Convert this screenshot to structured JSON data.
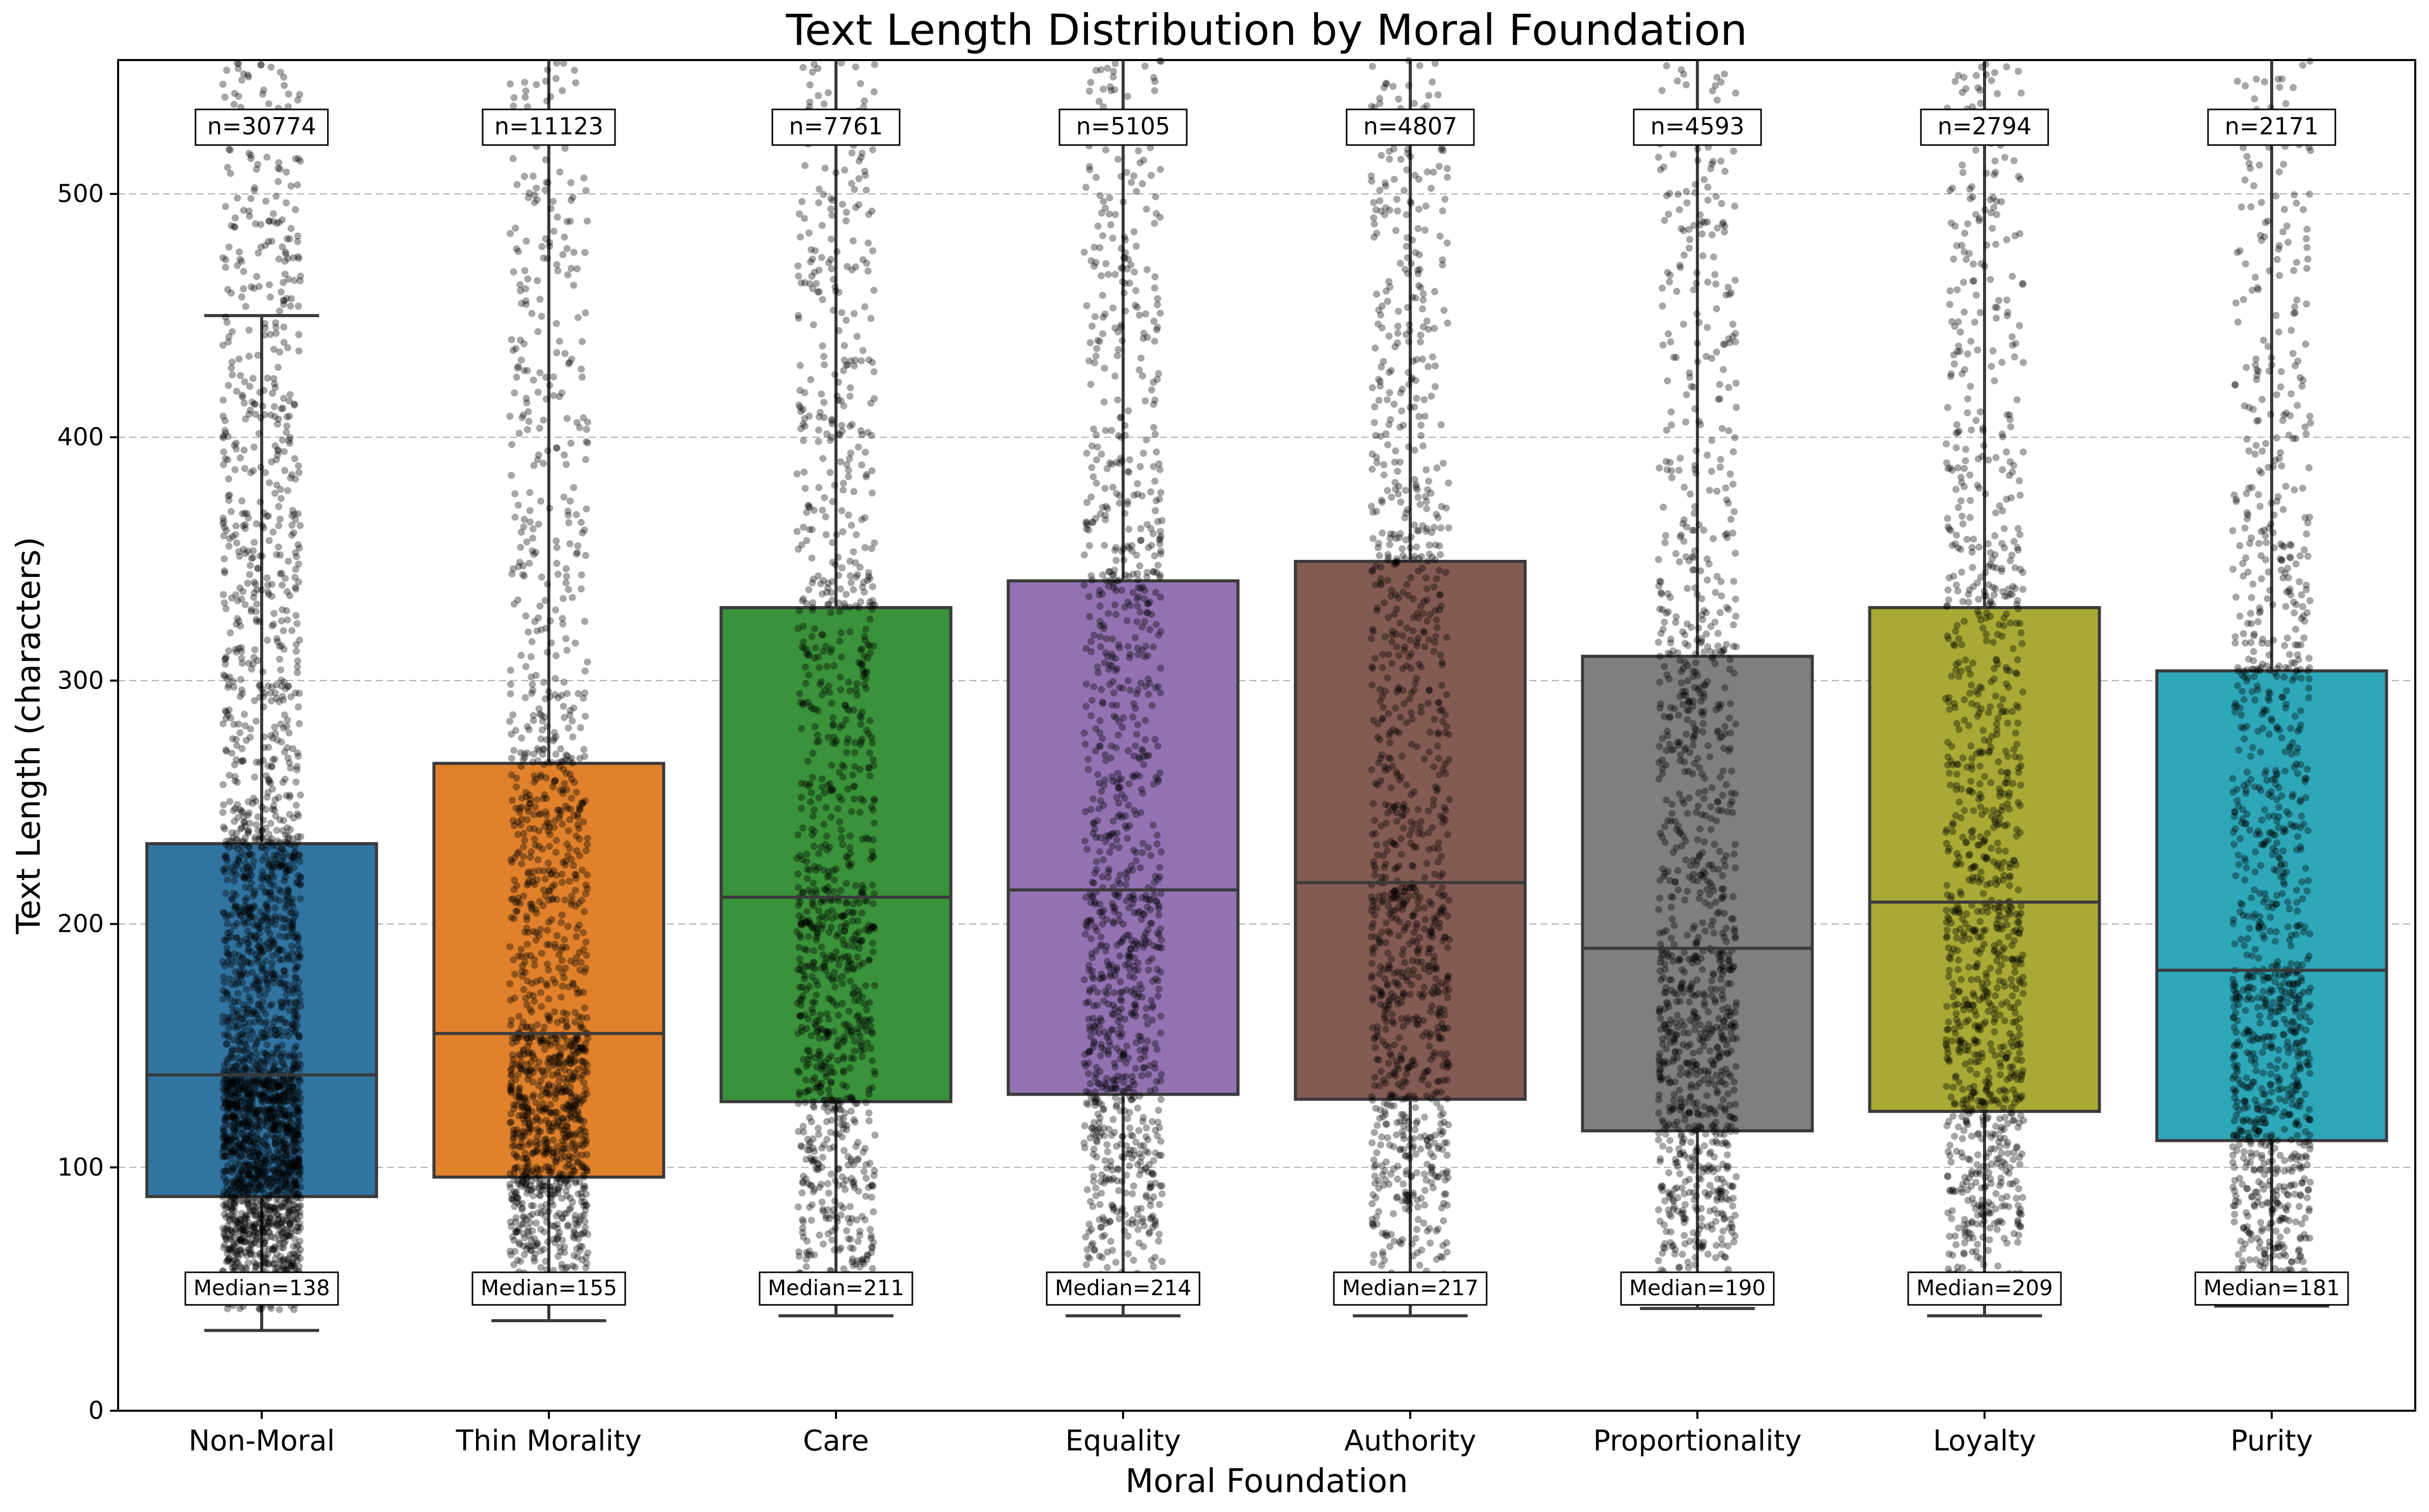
{
  "chart_data": {
    "type": "box",
    "title": "Text Length Distribution by Moral Foundation",
    "xlabel": "Moral Foundation",
    "ylabel": "Text Length (characters)",
    "ylim": [
      0,
      555
    ],
    "yticks": [
      0,
      100,
      200,
      300,
      400,
      500
    ],
    "grid": "horizontal dashed",
    "categories": [
      "Non-Moral",
      "Thin Morality",
      "Care",
      "Equality",
      "Authority",
      "Proportionality",
      "Loyalty",
      "Purity"
    ],
    "colors": [
      "#3274a1",
      "#e1812c",
      "#3a923a",
      "#9372b2",
      "#845b53",
      "#7f7f7f",
      "#a9aa35",
      "#2ea8b9"
    ],
    "boxes": [
      {
        "category": "Non-Moral",
        "q1": 88,
        "median": 138,
        "q3": 233,
        "whisker_low": 33,
        "whisker_high": 450,
        "n": 30774
      },
      {
        "category": "Thin Morality",
        "q1": 96,
        "median": 155,
        "q3": 266,
        "whisker_low": 37,
        "whisker_high": 555,
        "n": 11123
      },
      {
        "category": "Care",
        "q1": 127,
        "median": 211,
        "q3": 330,
        "whisker_low": 39,
        "whisker_high": 555,
        "n": 7761
      },
      {
        "category": "Equality",
        "q1": 130,
        "median": 214,
        "q3": 341,
        "whisker_low": 39,
        "whisker_high": 555,
        "n": 5105
      },
      {
        "category": "Authority",
        "q1": 128,
        "median": 217,
        "q3": 349,
        "whisker_low": 39,
        "whisker_high": 555,
        "n": 4807
      },
      {
        "category": "Proportionality",
        "q1": 115,
        "median": 190,
        "q3": 310,
        "whisker_low": 42,
        "whisker_high": 555,
        "n": 4593
      },
      {
        "category": "Loyalty",
        "q1": 123,
        "median": 209,
        "q3": 330,
        "whisker_low": 39,
        "whisker_high": 555,
        "n": 2794
      },
      {
        "category": "Purity",
        "q1": 111,
        "median": 181,
        "q3": 304,
        "whisker_low": 43,
        "whisker_high": 555,
        "n": 2171
      }
    ],
    "count_labels": [
      "n=30774",
      "n=11123",
      "n=7761",
      "n=5105",
      "n=4807",
      "n=4593",
      "n=2794",
      "n=2171"
    ],
    "median_labels": [
      "Median=138",
      "Median=155",
      "Median=211",
      "Median=214",
      "Median=217",
      "Median=190",
      "Median=209",
      "Median=181"
    ],
    "overlay": "black jittered strip points (alpha) over each box"
  }
}
